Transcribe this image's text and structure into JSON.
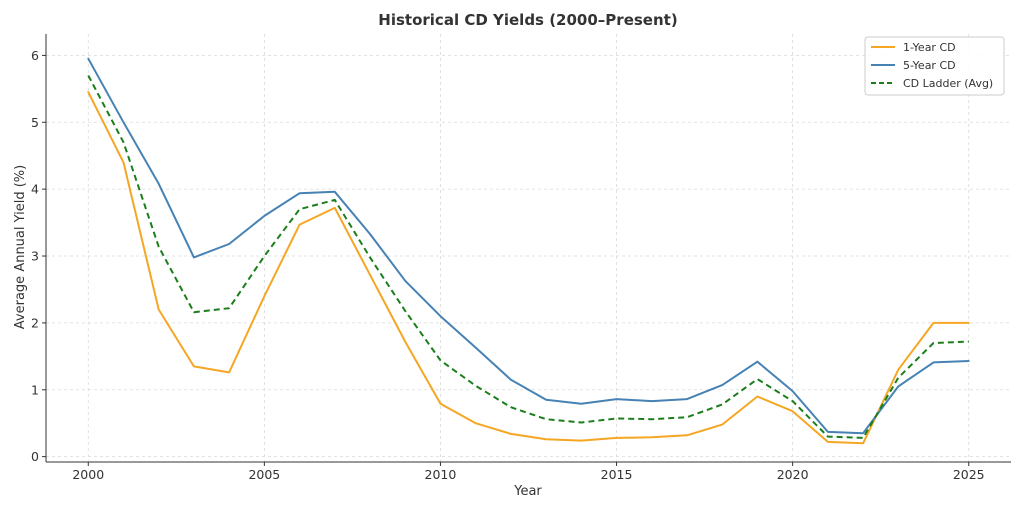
{
  "chart_data": {
    "type": "line",
    "title": "Historical CD Yields (2000–Present)",
    "xlabel": "Year",
    "ylabel": "Average Annual Yield (%)",
    "x": [
      2000,
      2001,
      2002,
      2003,
      2004,
      2005,
      2006,
      2007,
      2008,
      2009,
      2010,
      2011,
      2012,
      2013,
      2014,
      2015,
      2016,
      2017,
      2018,
      2019,
      2020,
      2021,
      2022,
      2023,
      2024,
      2025
    ],
    "xlim": [
      1998.8,
      2026.2
    ],
    "ylim": [
      -0.08,
      6.32
    ],
    "xticks": [
      2000,
      2005,
      2010,
      2015,
      2020,
      2025
    ],
    "yticks": [
      0,
      1,
      2,
      3,
      4,
      5,
      6
    ],
    "grid": true,
    "legend_position": "top-right",
    "series": [
      {
        "name": "1-Year CD",
        "color": "#f5a623",
        "style": "solid",
        "values": [
          5.45,
          4.4,
          2.2,
          1.35,
          1.26,
          2.4,
          3.47,
          3.72,
          2.72,
          1.72,
          0.79,
          0.5,
          0.34,
          0.26,
          0.24,
          0.28,
          0.29,
          0.32,
          0.48,
          0.9,
          0.68,
          0.22,
          0.2,
          1.3,
          2.0,
          2.0
        ]
      },
      {
        "name": "5-Year CD",
        "color": "#4682b4",
        "style": "solid",
        "values": [
          5.95,
          5.0,
          4.08,
          2.98,
          3.18,
          3.6,
          3.94,
          3.96,
          3.33,
          2.63,
          2.1,
          1.63,
          1.15,
          0.85,
          0.79,
          0.86,
          0.83,
          0.86,
          1.07,
          1.42,
          0.98,
          0.37,
          0.35,
          1.05,
          1.41,
          1.43
        ]
      },
      {
        "name": "CD Ladder (Avg)",
        "color": "#1a7f1a",
        "style": "dashed",
        "values": [
          5.7,
          4.7,
          3.14,
          2.16,
          2.22,
          3.0,
          3.7,
          3.84,
          2.98,
          2.18,
          1.44,
          1.06,
          0.74,
          0.56,
          0.51,
          0.57,
          0.56,
          0.59,
          0.78,
          1.16,
          0.83,
          0.3,
          0.28,
          1.18,
          1.7,
          1.72
        ]
      }
    ]
  }
}
